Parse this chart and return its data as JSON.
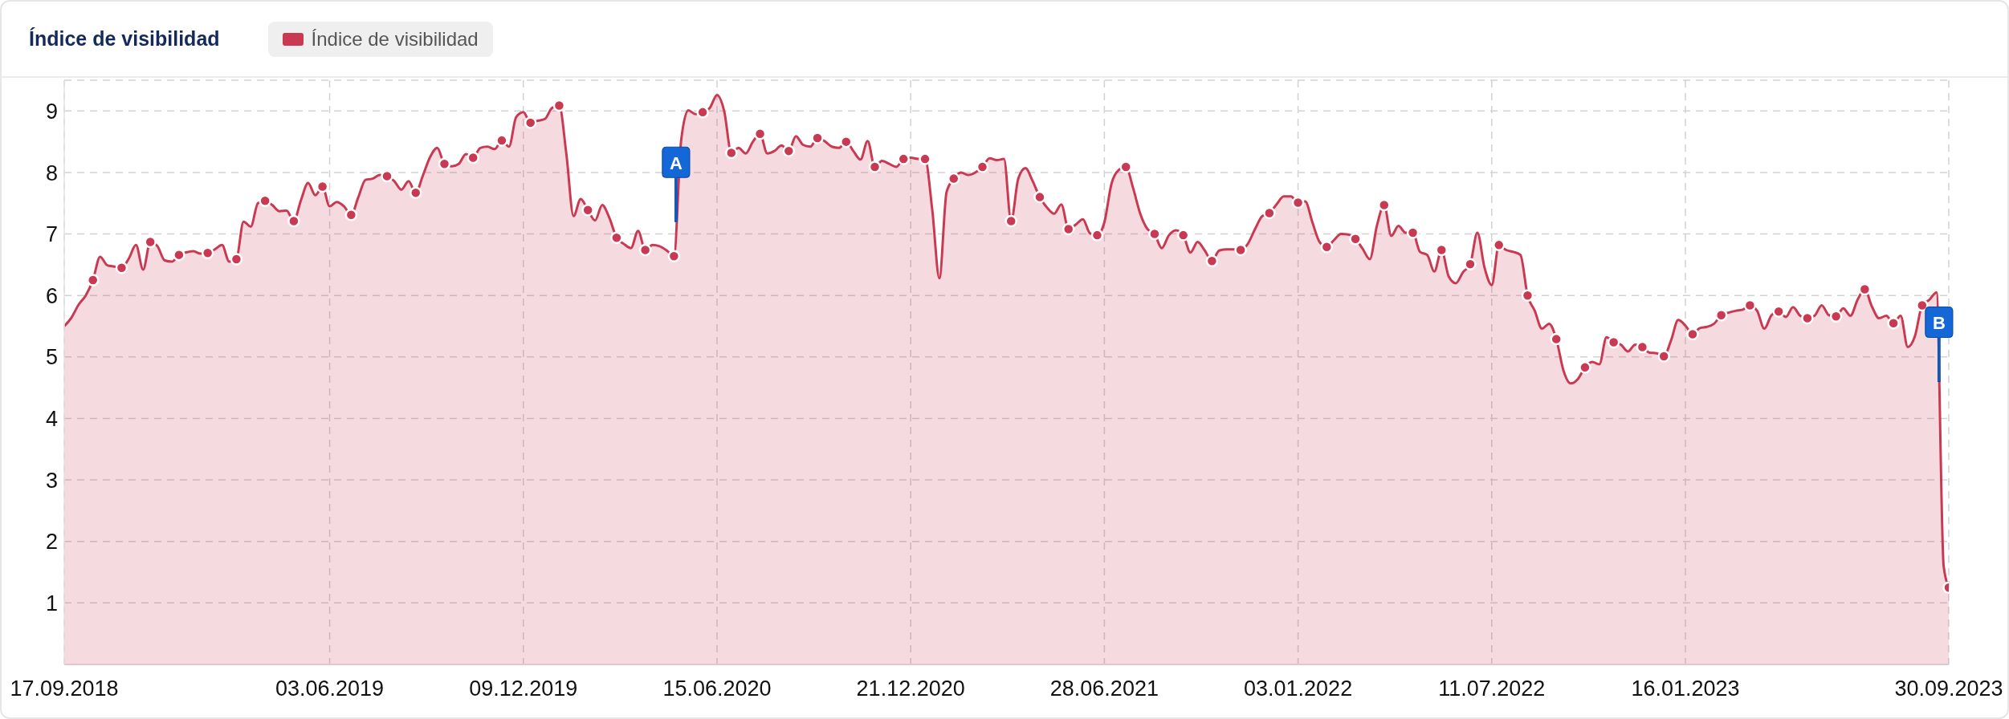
{
  "chart_data": {
    "type": "area",
    "title": "Índice de visibilidad",
    "xlim": [
      "2018-09-17",
      "2023-09-30"
    ],
    "xticks": [
      {
        "value": "2018-09-17",
        "label": "17.09.2018"
      },
      {
        "value": "2019-06-03",
        "label": "03.06.2019"
      },
      {
        "value": "2019-12-09",
        "label": "09.12.2019"
      },
      {
        "value": "2020-06-15",
        "label": "15.06.2020"
      },
      {
        "value": "2020-12-21",
        "label": "21.12.2020"
      },
      {
        "value": "2021-06-28",
        "label": "28.06.2021"
      },
      {
        "value": "2022-01-03",
        "label": "03.01.2022"
      },
      {
        "value": "2022-07-11",
        "label": "11.07.2022"
      },
      {
        "value": "2023-01-16",
        "label": "16.01.2023"
      },
      {
        "value": "2023-09-30",
        "label": "30.09.2023"
      }
    ],
    "ylim": [
      0,
      9.5
    ],
    "yticks": [
      1,
      2,
      3,
      4,
      5,
      6,
      7,
      8,
      9
    ],
    "grid": true,
    "legend": "top left",
    "series": [
      {
        "name": "Índice de visibilidad",
        "color": "#c93a52",
        "x": [
          "2018-09-17",
          "2018-09-24",
          "2018-10-01",
          "2018-10-08",
          "2018-10-15",
          "2018-10-22",
          "2018-10-29",
          "2018-11-05",
          "2018-11-12",
          "2018-11-19",
          "2018-11-26",
          "2018-12-03",
          "2018-12-10",
          "2018-12-17",
          "2018-12-24",
          "2018-12-31",
          "2019-01-07",
          "2019-01-14",
          "2019-01-21",
          "2019-01-28",
          "2019-02-04",
          "2019-02-11",
          "2019-02-18",
          "2019-02-25",
          "2019-03-04",
          "2019-03-11",
          "2019-03-18",
          "2019-03-25",
          "2019-04-01",
          "2019-04-08",
          "2019-04-15",
          "2019-04-22",
          "2019-04-29",
          "2019-05-06",
          "2019-05-13",
          "2019-05-20",
          "2019-05-27",
          "2019-06-03",
          "2019-06-10",
          "2019-06-17",
          "2019-06-24",
          "2019-07-01",
          "2019-07-08",
          "2019-07-15",
          "2019-07-22",
          "2019-07-29",
          "2019-08-05",
          "2019-08-12",
          "2019-08-19",
          "2019-08-26",
          "2019-09-02",
          "2019-09-09",
          "2019-09-16",
          "2019-09-23",
          "2019-09-30",
          "2019-10-07",
          "2019-10-14",
          "2019-10-21",
          "2019-10-28",
          "2019-11-04",
          "2019-11-11",
          "2019-11-18",
          "2019-11-25",
          "2019-12-02",
          "2019-12-09",
          "2019-12-16",
          "2019-12-23",
          "2019-12-30",
          "2020-01-06",
          "2020-01-13",
          "2020-01-20",
          "2020-01-27",
          "2020-02-03",
          "2020-02-10",
          "2020-02-17",
          "2020-02-24",
          "2020-03-02",
          "2020-03-09",
          "2020-03-16",
          "2020-03-23",
          "2020-03-30",
          "2020-04-06",
          "2020-04-13",
          "2020-04-20",
          "2020-04-27",
          "2020-05-04",
          "2020-05-11",
          "2020-05-18",
          "2020-05-25",
          "2020-06-01",
          "2020-06-08",
          "2020-06-15",
          "2020-06-22",
          "2020-06-29",
          "2020-07-06",
          "2020-07-13",
          "2020-07-20",
          "2020-07-27",
          "2020-08-03",
          "2020-08-10",
          "2020-08-17",
          "2020-08-24",
          "2020-08-31",
          "2020-09-07",
          "2020-09-14",
          "2020-09-21",
          "2020-09-28",
          "2020-10-05",
          "2020-10-12",
          "2020-10-19",
          "2020-10-26",
          "2020-11-02",
          "2020-11-09",
          "2020-11-16",
          "2020-11-23",
          "2020-11-30",
          "2020-12-07",
          "2020-12-14",
          "2020-12-21",
          "2020-12-28",
          "2021-01-04",
          "2021-01-11",
          "2021-01-18",
          "2021-01-25",
          "2021-02-01",
          "2021-02-08",
          "2021-02-15",
          "2021-02-22",
          "2021-03-01",
          "2021-03-08",
          "2021-03-15",
          "2021-03-22",
          "2021-03-29",
          "2021-04-05",
          "2021-04-12",
          "2021-04-19",
          "2021-04-26",
          "2021-05-03",
          "2021-05-10",
          "2021-05-17",
          "2021-05-24",
          "2021-05-31",
          "2021-06-07",
          "2021-06-14",
          "2021-06-21",
          "2021-06-28",
          "2021-07-05",
          "2021-07-12",
          "2021-07-19",
          "2021-07-26",
          "2021-08-02",
          "2021-08-09",
          "2021-08-16",
          "2021-08-23",
          "2021-08-30",
          "2021-09-06",
          "2021-09-13",
          "2021-09-20",
          "2021-09-27",
          "2021-10-04",
          "2021-10-11",
          "2021-10-18",
          "2021-10-25",
          "2021-11-01",
          "2021-11-08",
          "2021-11-15",
          "2021-11-22",
          "2021-11-29",
          "2021-12-06",
          "2021-12-13",
          "2021-12-20",
          "2021-12-27",
          "2022-01-03",
          "2022-01-10",
          "2022-01-17",
          "2022-01-24",
          "2022-01-31",
          "2022-02-07",
          "2022-02-14",
          "2022-02-21",
          "2022-02-28",
          "2022-03-07",
          "2022-03-14",
          "2022-03-21",
          "2022-03-28",
          "2022-04-04",
          "2022-04-11",
          "2022-04-18",
          "2022-04-25",
          "2022-05-02",
          "2022-05-09",
          "2022-05-16",
          "2022-05-23",
          "2022-05-30",
          "2022-06-06",
          "2022-06-13",
          "2022-06-20",
          "2022-06-27",
          "2022-07-04",
          "2022-07-11",
          "2022-07-18",
          "2022-07-25",
          "2022-08-01",
          "2022-08-08",
          "2022-08-15",
          "2022-08-22",
          "2022-08-29",
          "2022-09-05",
          "2022-09-12",
          "2022-09-19",
          "2022-09-26",
          "2022-10-03",
          "2022-10-10",
          "2022-10-17",
          "2022-10-24",
          "2022-10-31",
          "2022-11-07",
          "2022-11-14",
          "2022-11-21",
          "2022-11-28",
          "2022-12-05",
          "2022-12-12",
          "2022-12-19",
          "2022-12-26",
          "2023-01-02",
          "2023-01-09",
          "2023-01-16",
          "2023-01-23",
          "2023-01-30",
          "2023-02-06",
          "2023-02-13",
          "2023-02-20",
          "2023-02-27",
          "2023-03-06",
          "2023-03-13",
          "2023-03-20",
          "2023-03-27",
          "2023-04-03",
          "2023-04-10",
          "2023-04-17",
          "2023-04-24",
          "2023-05-01",
          "2023-05-08",
          "2023-05-15",
          "2023-05-22",
          "2023-05-29",
          "2023-06-05",
          "2023-06-12",
          "2023-06-19",
          "2023-06-26",
          "2023-07-03",
          "2023-07-10",
          "2023-07-17",
          "2023-07-24",
          "2023-07-31",
          "2023-08-07",
          "2023-08-14",
          "2023-08-21",
          "2023-08-28",
          "2023-09-04",
          "2023-09-11",
          "2023-09-18",
          "2023-09-25",
          "2023-09-30"
        ],
        "values": [
          5.5,
          5.64,
          5.85,
          6.0,
          6.25,
          6.63,
          6.49,
          6.47,
          6.45,
          6.6,
          6.82,
          6.42,
          6.87,
          6.8,
          6.57,
          6.55,
          6.66,
          6.7,
          6.72,
          6.68,
          6.69,
          6.75,
          6.82,
          6.55,
          6.59,
          7.2,
          7.12,
          7.5,
          7.54,
          7.47,
          7.37,
          7.38,
          7.21,
          7.55,
          7.83,
          7.63,
          7.77,
          7.45,
          7.52,
          7.45,
          7.31,
          7.6,
          7.88,
          7.9,
          7.96,
          7.94,
          7.86,
          7.72,
          7.86,
          7.67,
          7.95,
          8.25,
          8.4,
          8.14,
          8.1,
          8.14,
          8.3,
          8.24,
          8.4,
          8.42,
          8.38,
          8.52,
          8.42,
          8.9,
          8.98,
          8.81,
          8.84,
          8.87,
          9.05,
          9.09,
          8.3,
          7.29,
          7.57,
          7.39,
          7.22,
          7.47,
          7.26,
          6.94,
          6.84,
          6.77,
          7.05,
          6.74,
          6.82,
          6.8,
          6.73,
          6.64,
          8.52,
          9.01,
          8.95,
          8.98,
          9.05,
          9.26,
          9.0,
          8.32,
          8.4,
          8.31,
          8.5,
          8.63,
          8.31,
          8.35,
          8.44,
          8.35,
          8.59,
          8.45,
          8.42,
          8.56,
          8.51,
          8.42,
          8.4,
          8.5,
          8.35,
          8.21,
          8.51,
          8.09,
          8.19,
          8.14,
          8.09,
          8.22,
          8.24,
          8.22,
          8.22,
          7.4,
          6.28,
          7.68,
          7.9,
          8.0,
          7.96,
          8.0,
          8.09,
          8.23,
          8.2,
          8.22,
          7.21,
          7.9,
          8.07,
          7.86,
          7.6,
          7.43,
          7.33,
          7.48,
          7.08,
          7.15,
          7.24,
          7.01,
          6.98,
          7.19,
          7.82,
          8.04,
          8.09,
          7.75,
          7.33,
          7.08,
          7.0,
          6.77,
          6.98,
          7.06,
          6.98,
          6.7,
          6.87,
          6.73,
          6.56,
          6.73,
          6.75,
          6.75,
          6.74,
          6.84,
          7.08,
          7.29,
          7.34,
          7.48,
          7.61,
          7.61,
          7.51,
          7.53,
          7.19,
          6.87,
          6.79,
          6.9,
          7.0,
          6.99,
          6.92,
          6.76,
          6.59,
          7.14,
          7.47,
          6.97,
          7.13,
          7.02,
          7.02,
          6.71,
          6.66,
          6.39,
          6.74,
          6.31,
          6.2,
          6.38,
          6.51,
          7.02,
          6.45,
          6.17,
          6.82,
          6.74,
          6.71,
          6.66,
          6.0,
          5.75,
          5.46,
          5.54,
          5.29,
          4.78,
          4.57,
          4.64,
          4.83,
          4.92,
          4.88,
          5.32,
          5.24,
          5.2,
          5.09,
          5.2,
          5.16,
          5.07,
          5.06,
          5.01,
          5.27,
          5.6,
          5.51,
          5.37,
          5.47,
          5.49,
          5.54,
          5.68,
          5.72,
          5.75,
          5.77,
          5.84,
          5.75,
          5.46,
          5.68,
          5.74,
          5.65,
          5.81,
          5.67,
          5.63,
          5.67,
          5.84,
          5.68,
          5.66,
          5.79,
          5.67,
          5.93,
          6.1,
          5.82,
          5.63,
          5.67,
          5.55,
          5.67,
          5.16,
          5.34,
          5.84,
          5.93,
          6.05,
          1.6,
          1.25
        ]
      },
      {
        "type": "scatter",
        "color": "#c93a52",
        "marker": "circle",
        "x": [
          "2018-10-15",
          "2018-11-12",
          "2018-12-10",
          "2019-01-07",
          "2019-02-04",
          "2019-03-04",
          "2019-04-01",
          "2019-04-29",
          "2019-05-27",
          "2019-06-24",
          "2019-07-29",
          "2019-08-26",
          "2019-09-23",
          "2019-10-21",
          "2019-11-18",
          "2019-12-16",
          "2020-01-13",
          "2020-02-10",
          "2020-03-09",
          "2020-04-06",
          "2020-05-04",
          "2020-06-01",
          "2020-06-29",
          "2020-07-27",
          "2020-08-24",
          "2020-09-21",
          "2020-10-19",
          "2020-11-16",
          "2020-12-14",
          "2021-01-04",
          "2021-02-01",
          "2021-03-01",
          "2021-03-29",
          "2021-04-26",
          "2021-05-24",
          "2021-06-21",
          "2021-07-19",
          "2021-08-16",
          "2021-09-13",
          "2021-10-11",
          "2021-11-08",
          "2021-12-06",
          "2022-01-03",
          "2022-01-31",
          "2022-02-28",
          "2022-03-28",
          "2022-04-25",
          "2022-05-23",
          "2022-06-20",
          "2022-07-18",
          "2022-08-15",
          "2022-09-12",
          "2022-10-10",
          "2022-11-07",
          "2022-12-05",
          "2022-12-26",
          "2023-01-23",
          "2023-02-20",
          "2023-03-20",
          "2023-04-17",
          "2023-05-15",
          "2023-06-12",
          "2023-07-10",
          "2023-08-07",
          "2023-09-04",
          "2023-09-30"
        ],
        "values": [
          6.25,
          6.45,
          6.87,
          6.66,
          6.69,
          6.59,
          7.54,
          7.21,
          7.77,
          7.31,
          7.94,
          7.67,
          8.14,
          8.24,
          8.52,
          8.81,
          9.09,
          7.39,
          6.94,
          6.74,
          6.64,
          8.98,
          8.32,
          8.63,
          8.35,
          8.56,
          8.5,
          8.09,
          8.22,
          8.22,
          7.9,
          8.09,
          7.21,
          7.6,
          7.08,
          6.98,
          8.09,
          7.0,
          6.98,
          6.56,
          6.74,
          7.34,
          7.51,
          6.79,
          6.92,
          7.47,
          7.02,
          6.74,
          6.51,
          6.82,
          6.0,
          5.29,
          4.83,
          5.24,
          5.16,
          5.01,
          5.37,
          5.68,
          5.84,
          5.74,
          5.63,
          5.66,
          6.1,
          5.55,
          5.84,
          1.25
        ]
      }
    ],
    "annotations": [
      {
        "text": "A",
        "x": "2020-05-06",
        "y": 7.2
      },
      {
        "text": "B",
        "x": "2023-09-20T12:00",
        "y": 4.6
      }
    ]
  }
}
